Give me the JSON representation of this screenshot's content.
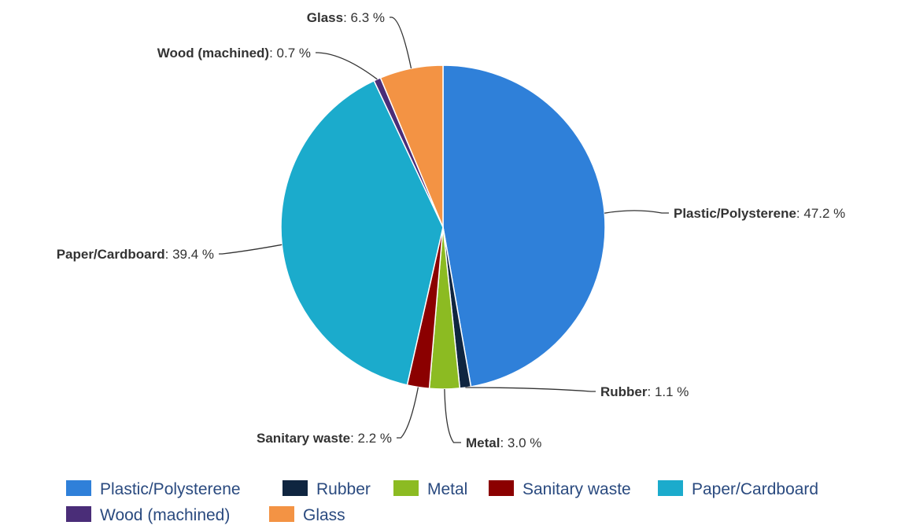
{
  "chart_data": {
    "type": "pie",
    "title": "",
    "unit": "%",
    "slices": [
      {
        "name": "Plastic/Polysterene",
        "value": 47.2,
        "label_value": "47.2 %",
        "color": "#2f80d9"
      },
      {
        "name": "Rubber",
        "value": 1.1,
        "label_value": "1.1 %",
        "color": "#0f2540"
      },
      {
        "name": "Metal",
        "value": 3.0,
        "label_value": "3.0 %",
        "color": "#8cbb22"
      },
      {
        "name": "Sanitary waste",
        "value": 2.2,
        "label_value": "2.2 %",
        "color": "#8b0000"
      },
      {
        "name": "Paper/Cardboard",
        "value": 39.4,
        "label_value": "39.4 %",
        "color": "#1babcc"
      },
      {
        "name": "Wood (machined)",
        "value": 0.7,
        "label_value": "0.7 %",
        "color": "#4a2d78"
      },
      {
        "name": "Glass",
        "value": 6.3,
        "label_value": "6.3 %",
        "color": "#f39344"
      }
    ],
    "legend": {
      "placement": "bottom-center"
    }
  }
}
